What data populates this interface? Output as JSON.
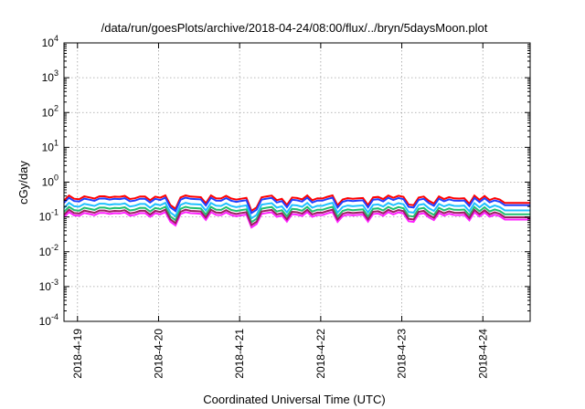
{
  "chart_data": {
    "type": "line",
    "title": "/data/run/goesPlots/archive/2018-04-24/08:00/flux/../bryn/5daysMoon.plot",
    "xlabel": "Coordinated Universal Time (UTC)",
    "ylabel": "cGy/day",
    "yscale": "log",
    "ylim": [
      0.0001,
      10000
    ],
    "xlim": [
      "2018-04-18 20:00",
      "2018-04-24 14:00"
    ],
    "grid": true,
    "x_ticks": [
      "2018-4-19",
      "2018-4-20",
      "2018-4-21",
      "2018-4-22",
      "2018-4-23",
      "2018-4-24"
    ],
    "y_ticks": [
      {
        "base": "10",
        "exp": "4"
      },
      {
        "base": "10",
        "exp": "3"
      },
      {
        "base": "10",
        "exp": "2"
      },
      {
        "base": "10",
        "exp": "1"
      },
      {
        "base": "10",
        "exp": "0"
      },
      {
        "base": "10",
        "exp": "-1"
      },
      {
        "base": "10",
        "exp": "-2"
      },
      {
        "base": "10",
        "exp": "-3"
      },
      {
        "base": "10",
        "exp": "-4"
      }
    ],
    "series": [
      {
        "color": "#ff0000",
        "level": 0.36
      },
      {
        "color": "#2040ff",
        "level": 0.31
      },
      {
        "color": "#20c0ff",
        "level": 0.22
      },
      {
        "color": "#20c070",
        "level": 0.17
      },
      {
        "color": "#ff20ff",
        "level": 0.12
      },
      {
        "color": "#9a2060",
        "level": 0.14
      }
    ],
    "dips": [
      {
        "x": "2018-04-20 04:00",
        "factor": 0.55
      },
      {
        "x": "2018-04-20 14:00",
        "factor": 0.6
      },
      {
        "x": "2018-04-21 04:30",
        "factor": 0.45
      },
      {
        "x": "2018-04-21 14:00",
        "factor": 0.6
      },
      {
        "x": "2018-04-22 05:00",
        "factor": 0.6
      },
      {
        "x": "2018-04-22 14:00",
        "factor": 0.65
      },
      {
        "x": "2018-04-23 03:00",
        "factor": 0.6
      },
      {
        "x": "2018-04-23 09:00",
        "factor": 0.7
      },
      {
        "x": "2018-04-23 20:00",
        "factor": 0.6
      }
    ]
  }
}
